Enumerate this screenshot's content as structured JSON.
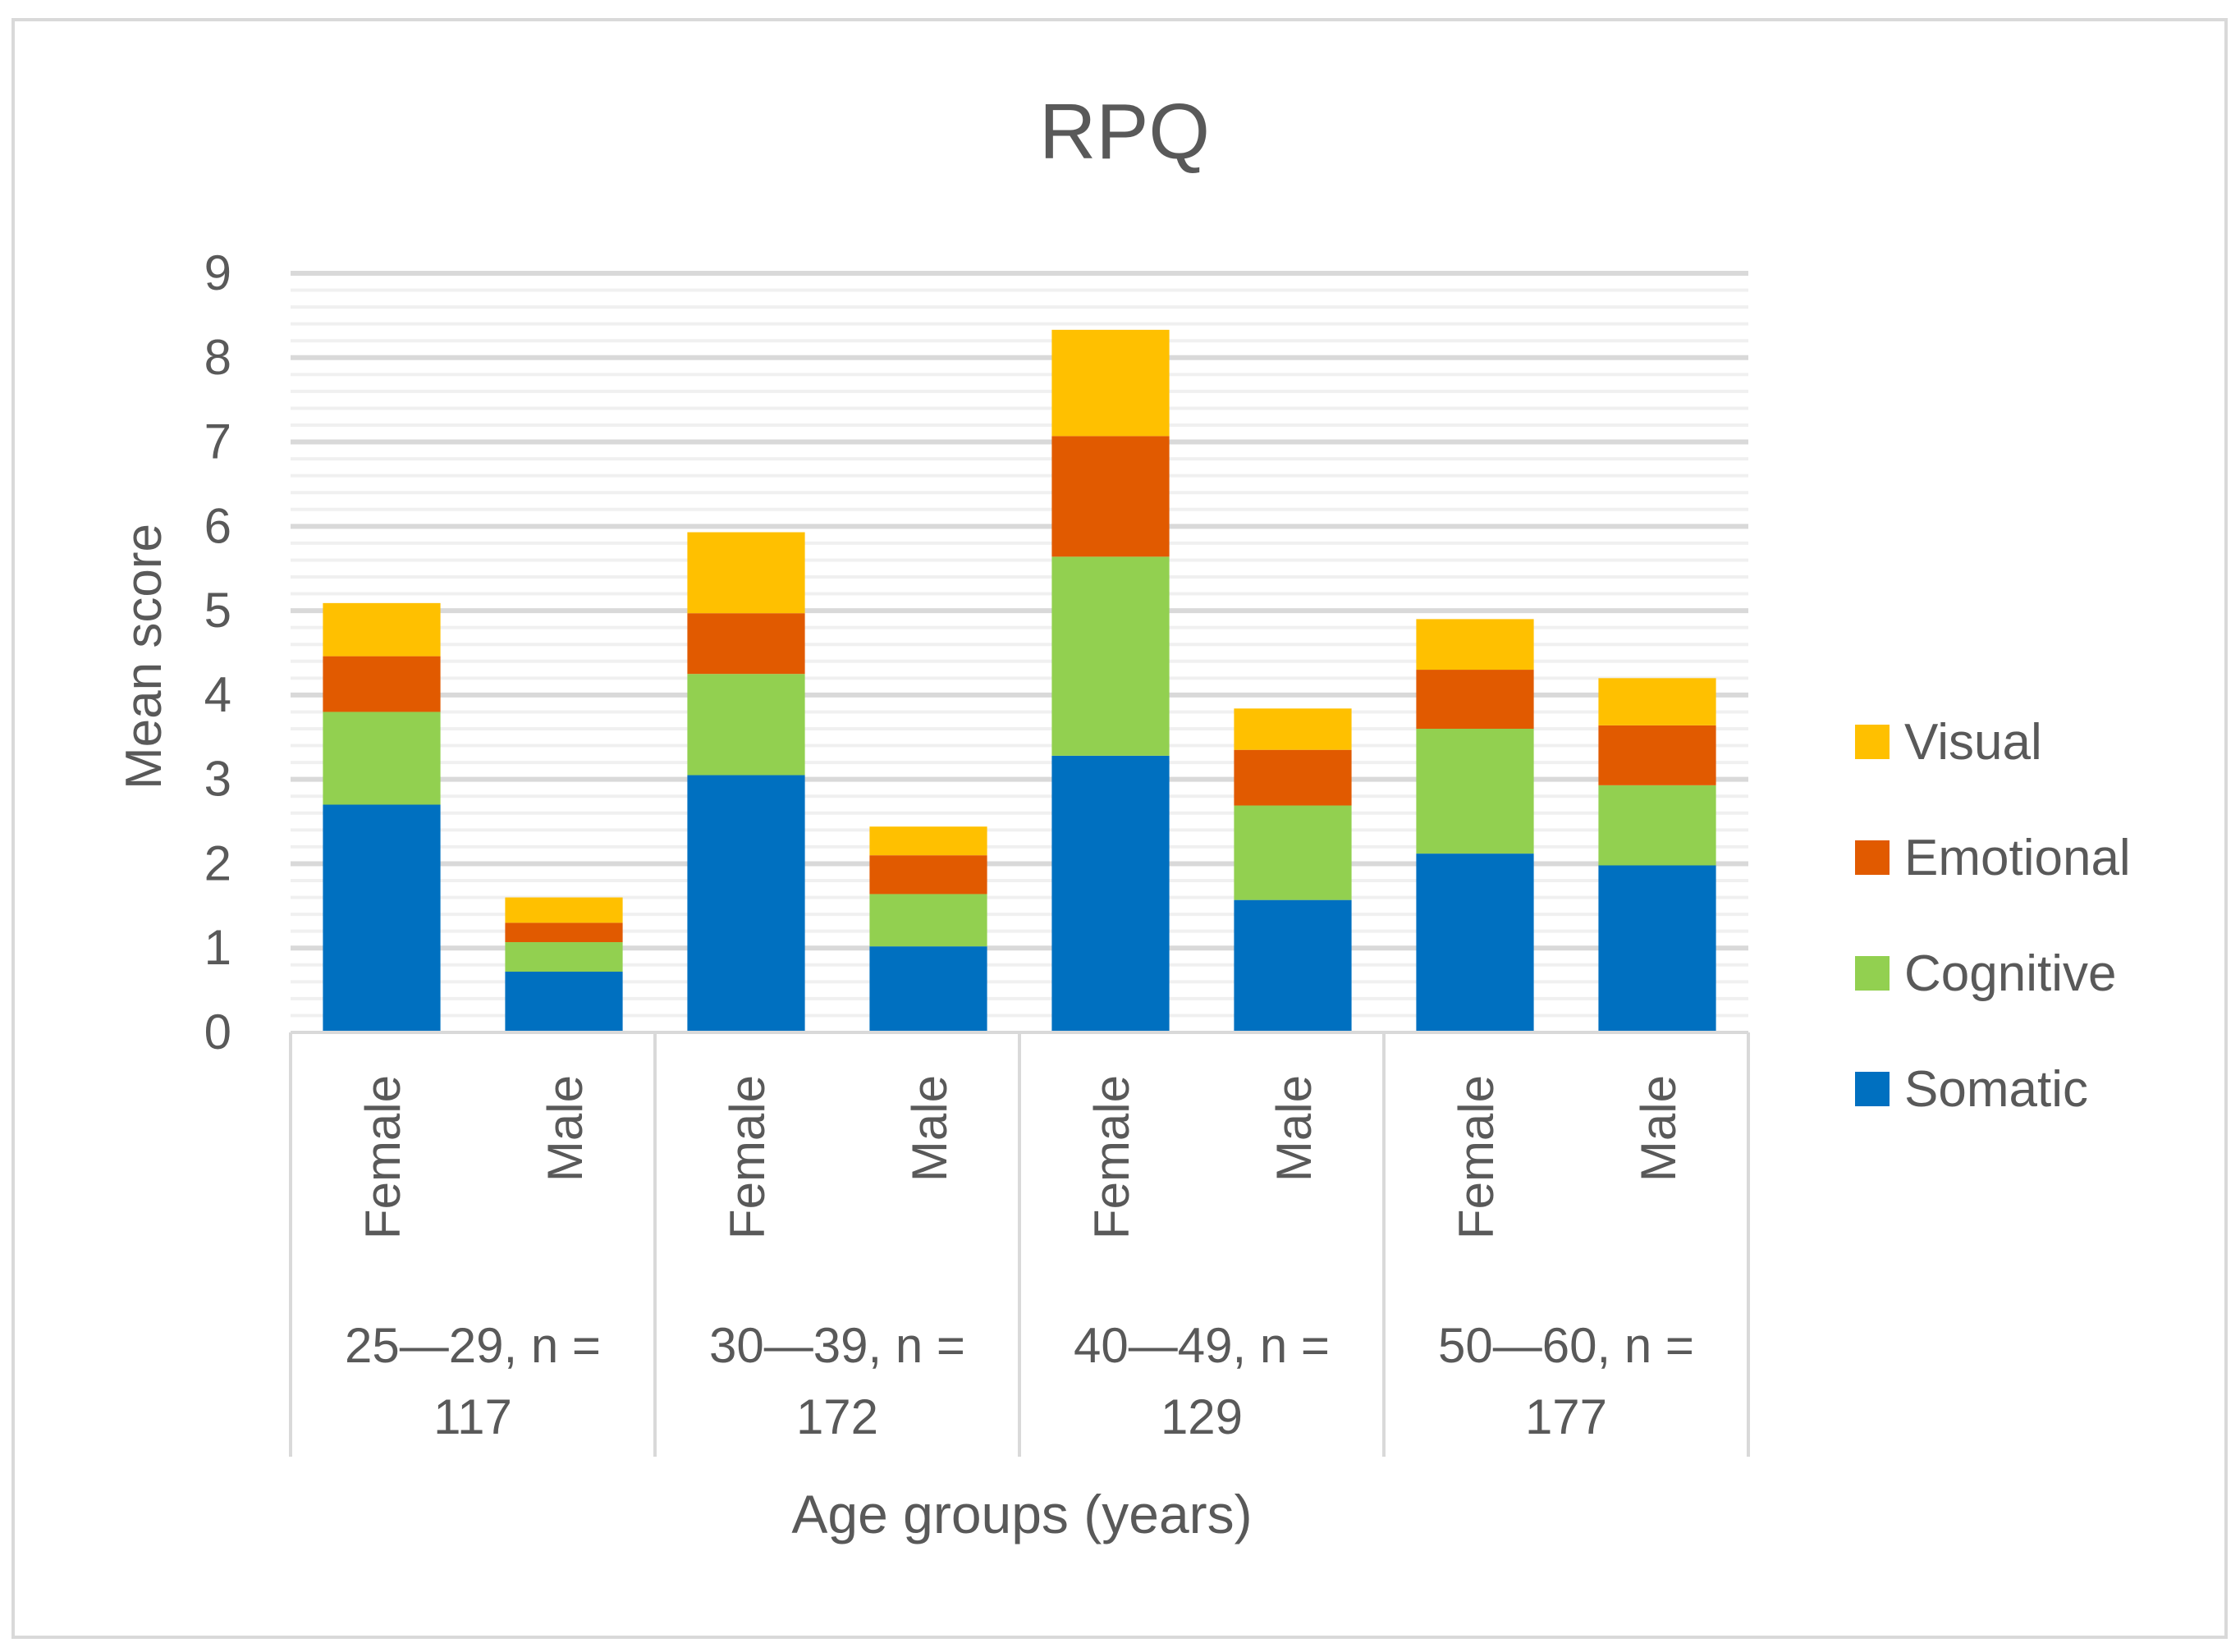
{
  "chart_data": {
    "type": "bar",
    "stacked": true,
    "title": "RPQ",
    "xlabel": "Age groups (years)",
    "ylabel": "Mean score",
    "ylim": [
      0,
      9
    ],
    "y_ticks": [
      "0",
      "1",
      "2",
      "3",
      "4",
      "5",
      "6",
      "7",
      "8",
      "9"
    ],
    "minor_grid_step": 0.2,
    "grid": true,
    "legend_position": "right",
    "groups": [
      {
        "label_line1": "25—29, n =",
        "label_line2": "117"
      },
      {
        "label_line1": "30—39, n =",
        "label_line2": "172"
      },
      {
        "label_line1": "40—49, n =",
        "label_line2": "129"
      },
      {
        "label_line1": "50—60, n =",
        "label_line2": "177"
      }
    ],
    "categories": [
      "Female",
      "Male",
      "Female",
      "Male",
      "Female",
      "Male",
      "Female",
      "Male"
    ],
    "series": [
      {
        "name": "Somatic",
        "color": "#0070c0",
        "values": [
          2.7,
          0.72,
          3.05,
          1.02,
          3.28,
          1.57,
          2.12,
          1.98
        ]
      },
      {
        "name": "Cognitive",
        "color": "#92d050",
        "values": [
          1.1,
          0.35,
          1.2,
          0.62,
          2.36,
          1.12,
          1.48,
          0.95
        ]
      },
      {
        "name": "Emotional",
        "color": "#e15a00",
        "values": [
          0.66,
          0.23,
          0.72,
          0.46,
          1.43,
          0.66,
          0.7,
          0.71
        ]
      },
      {
        "name": "Visual",
        "color": "#ffc000",
        "values": [
          0.63,
          0.3,
          0.96,
          0.34,
          1.26,
          0.49,
          0.6,
          0.56
        ]
      }
    ],
    "legend_order": [
      "Visual",
      "Emotional",
      "Cognitive",
      "Somatic"
    ]
  }
}
